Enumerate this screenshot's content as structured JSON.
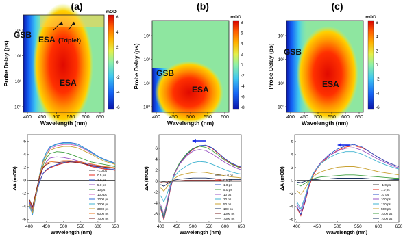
{
  "panel_labels": [
    "(a)",
    "(b)",
    "(c)"
  ],
  "colors": {
    "cmap": [
      "#0a12a8",
      "#1565f5",
      "#3fc7f0",
      "#8ef0a8",
      "#e3ef4a",
      "#ffb200",
      "#ff5a00",
      "#d80000"
    ],
    "arrow": "#1a2ee8"
  },
  "chart_data": [
    {
      "type": "heatmap",
      "panel": "(a)",
      "xlabel": "Wavelength (nm)",
      "ylabel": "Probe Delay (ps)",
      "xticks": [
        "400",
        "450",
        "500",
        "550",
        "600",
        "650"
      ],
      "yticks": [
        "10⁰",
        "10¹",
        "10²",
        "10³"
      ],
      "y_scale": "log",
      "colorbar": {
        "title": "mOD",
        "ticks": [
          "6",
          "4",
          "2",
          "0",
          "-2",
          "-4",
          "-6"
        ],
        "range": [
          -6,
          6
        ]
      },
      "annotations": [
        "GSB",
        "ESA",
        "ESA",
        "(Triplet)"
      ]
    },
    {
      "type": "heatmap",
      "panel": "(b)",
      "xlabel": "Wavelength (nm)",
      "ylabel": "",
      "xticks": [
        "400",
        "450",
        "500",
        "550",
        "600"
      ],
      "yticks": [
        "10⁰",
        "10¹",
        "10²",
        "10³"
      ],
      "y_scale": "log",
      "colorbar": {
        "title": "mOD",
        "ticks": [
          "8",
          "6",
          "4",
          "2",
          "0",
          "-2",
          "-4",
          "-6",
          "-8"
        ],
        "range": [
          -8,
          8
        ]
      },
      "annotations": [
        "GSB",
        "ESA"
      ]
    },
    {
      "type": "heatmap",
      "panel": "(c)",
      "xlabel": "Wavelength (nm)",
      "ylabel": "",
      "xticks": [
        "400",
        "450",
        "500",
        "550",
        "600",
        "650"
      ],
      "yticks": [
        "10⁰",
        "10¹",
        "10²",
        "10³"
      ],
      "y_scale": "log",
      "colorbar": {
        "title": "mOD",
        "ticks": [
          "6",
          "4",
          "2",
          "0",
          "-2",
          "-4",
          "-6"
        ],
        "range": [
          -6,
          6
        ]
      },
      "annotations": [
        "GSB",
        "ESA"
      ]
    },
    {
      "type": "line",
      "panel": "(a)",
      "xlabel": "Wavelength (nm)",
      "ylabel": "ΔA (mOD)",
      "xticks": [
        "400",
        "450",
        "500",
        "550",
        "600",
        "650"
      ],
      "yticks": [
        "-6",
        "-4",
        "-2",
        "0",
        "2",
        "4",
        "6"
      ],
      "xlim": [
        395,
        650
      ],
      "ylim": [
        -6.5,
        7
      ],
      "x": [
        400,
        410,
        420,
        430,
        440,
        450,
        460,
        480,
        500,
        520,
        540,
        560,
        580,
        600,
        620,
        640,
        650
      ],
      "series": [
        {
          "name": "-1.0 ps",
          "color": "#444444",
          "values": [
            0,
            0,
            0,
            0,
            0,
            0,
            0,
            0,
            0,
            0,
            0,
            0,
            0,
            0,
            0,
            0,
            0
          ]
        },
        {
          "name": "0.5 ps",
          "color": "#e8281e",
          "values": [
            -3.1,
            -4.3,
            -2.2,
            -0.2,
            1.0,
            1.5,
            1.9,
            2.3,
            2.6,
            2.8,
            2.8,
            2.5,
            2.1,
            1.9,
            1.7,
            1.6,
            1.5
          ]
        },
        {
          "name": "1.0 ps",
          "color": "#2b52c9",
          "values": [
            -3.3,
            -4.6,
            -2.4,
            -0.3,
            1.0,
            1.6,
            2.0,
            2.4,
            2.7,
            2.9,
            2.9,
            2.6,
            2.2,
            2.0,
            1.8,
            1.7,
            1.6
          ]
        },
        {
          "name": "5.0 ps",
          "color": "#9a56c4",
          "values": [
            -3.5,
            -4.8,
            -2.3,
            0.2,
            1.8,
            2.8,
            3.4,
            3.6,
            3.5,
            3.3,
            3.0,
            2.7,
            2.4,
            2.2,
            2.0,
            1.9,
            1.8
          ]
        },
        {
          "name": "10 ps",
          "color": "#3f9f40",
          "values": [
            -3.7,
            -5.0,
            -2.5,
            0.3,
            2.2,
            3.4,
            4.1,
            4.4,
            4.3,
            4.0,
            3.6,
            3.2,
            2.8,
            2.6,
            2.4,
            2.2,
            2.1
          ]
        },
        {
          "name": "100 ps",
          "color": "#d05fc0",
          "values": [
            -3.8,
            -5.2,
            -2.5,
            0.5,
            2.6,
            3.9,
            4.8,
            5.3,
            5.5,
            5.5,
            5.3,
            4.8,
            4.2,
            3.6,
            3.1,
            2.7,
            2.5
          ]
        },
        {
          "name": "1000 ps",
          "color": "#2f6bd8",
          "values": [
            -3.9,
            -5.3,
            -2.4,
            0.8,
            3.0,
            4.3,
            5.1,
            5.6,
            5.8,
            5.8,
            5.6,
            5.0,
            4.4,
            3.7,
            3.2,
            2.8,
            2.6
          ]
        },
        {
          "name": "2000 ps",
          "color": "#3fb3d0",
          "values": [
            -3.8,
            -5.2,
            -2.3,
            0.8,
            2.9,
            4.2,
            5.0,
            5.5,
            5.7,
            5.7,
            5.4,
            4.9,
            4.3,
            3.6,
            3.1,
            2.7,
            2.5
          ]
        },
        {
          "name": "3000 ps",
          "color": "#c8a030",
          "values": [
            -3.6,
            -5.0,
            -2.2,
            0.7,
            2.7,
            3.9,
            4.6,
            5.0,
            5.2,
            5.2,
            5.0,
            4.5,
            4.0,
            3.4,
            2.9,
            2.6,
            2.4
          ]
        },
        {
          "name": "6000 ps",
          "color": "#ee7a22",
          "values": [
            -3.0,
            -4.2,
            -1.8,
            0.6,
            2.0,
            2.6,
            2.8,
            2.9,
            3.0,
            3.0,
            2.9,
            2.7,
            2.5,
            2.3,
            2.1,
            2.0,
            1.9
          ]
        },
        {
          "name": "7000 ps",
          "color": "#7a2020",
          "values": [
            -2.9,
            -4.1,
            -1.8,
            0.5,
            1.9,
            2.4,
            2.6,
            2.7,
            2.8,
            2.8,
            2.7,
            2.5,
            2.3,
            2.1,
            2.0,
            1.9,
            1.8
          ]
        }
      ]
    },
    {
      "type": "line",
      "panel": "(b)",
      "xlabel": "Wavelength (nm)",
      "ylabel": "ΔA (mOD)",
      "xticks": [
        "400",
        "450",
        "500",
        "550",
        "600",
        "650"
      ],
      "yticks": [
        "-6",
        "-4",
        "-2",
        "0",
        "2",
        "4",
        "6"
      ],
      "xlim": [
        395,
        650
      ],
      "ylim": [
        -7.5,
        8.5
      ],
      "x": [
        400,
        410,
        420,
        430,
        440,
        450,
        460,
        480,
        500,
        520,
        540,
        560,
        580,
        600,
        620,
        640,
        650
      ],
      "series": [
        {
          "name": "-1.0 ps",
          "color": "#444444",
          "values": [
            0,
            0,
            0,
            0,
            0,
            0,
            0,
            0,
            0,
            0,
            0,
            0,
            0,
            0,
            0,
            0,
            0
          ]
        },
        {
          "name": "0.5 ps",
          "color": "#e8281e",
          "values": [
            -5.0,
            -7.0,
            -4.5,
            -1.5,
            0.8,
            2.2,
            3.3,
            4.8,
            5.8,
            6.4,
            6.5,
            6.0,
            5.0,
            4.0,
            3.2,
            2.7,
            2.5
          ]
        },
        {
          "name": "1.0 ps",
          "color": "#2b52c9",
          "values": [
            -4.8,
            -6.8,
            -4.3,
            -1.3,
            0.9,
            2.3,
            3.4,
            4.9,
            5.9,
            6.5,
            6.6,
            6.1,
            5.1,
            4.1,
            3.3,
            2.8,
            2.6
          ]
        },
        {
          "name": "5.0 ps",
          "color": "#3f9f40",
          "values": [
            -4.5,
            -6.5,
            -4.0,
            -1.0,
            1.1,
            2.4,
            3.5,
            5.0,
            6.0,
            6.4,
            6.2,
            5.6,
            4.7,
            3.8,
            3.1,
            2.6,
            2.4
          ]
        },
        {
          "name": "10 ps",
          "color": "#9a56c4",
          "values": [
            -4.2,
            -6.1,
            -3.7,
            -0.9,
            1.0,
            2.2,
            3.2,
            4.6,
            5.5,
            5.8,
            5.6,
            5.0,
            4.2,
            3.4,
            2.8,
            2.3,
            2.1
          ]
        },
        {
          "name": "20 ns",
          "color": "#3fb3d0",
          "values": [
            -2.6,
            -3.8,
            -2.3,
            -0.5,
            0.7,
            1.4,
            2.0,
            2.8,
            3.4,
            3.6,
            3.5,
            3.1,
            2.6,
            2.1,
            1.7,
            1.4,
            1.3
          ]
        },
        {
          "name": "50 ns",
          "color": "#c8a030",
          "values": [
            -1.2,
            -1.8,
            -1.0,
            -0.2,
            0.4,
            0.8,
            1.1,
            1.4,
            1.6,
            1.7,
            1.6,
            1.4,
            1.2,
            1.0,
            0.8,
            0.7,
            0.6
          ]
        },
        {
          "name": "100 ps",
          "color": "#1a3060",
          "values": [
            -0.6,
            -0.9,
            -0.5,
            -0.1,
            0.2,
            0.3,
            0.4,
            0.5,
            0.6,
            0.6,
            0.6,
            0.5,
            0.4,
            0.4,
            0.3,
            0.3,
            0.3
          ]
        },
        {
          "name": "1000 ps",
          "color": "#7a2020",
          "values": [
            -0.2,
            -0.3,
            -0.2,
            0,
            0.1,
            0.1,
            0.1,
            0.2,
            0.2,
            0.2,
            0.2,
            0.2,
            0.2,
            0.1,
            0.1,
            0.1,
            0.1
          ]
        },
        {
          "name": "7000 ps",
          "color": "#555555",
          "values": [
            0,
            -0.1,
            0,
            0,
            0,
            0,
            0,
            0,
            0,
            0,
            0,
            0,
            0,
            0,
            0,
            0,
            0
          ]
        }
      ]
    },
    {
      "type": "line",
      "panel": "(c)",
      "xlabel": "Wavelength (nm)",
      "ylabel": "ΔA (mOD)",
      "xticks": [
        "400",
        "450",
        "500",
        "550",
        "600",
        "650"
      ],
      "yticks": [
        "-6",
        "-4",
        "-2",
        "0",
        "2",
        "4",
        "6"
      ],
      "xlim": [
        395,
        650
      ],
      "ylim": [
        -6.5,
        7
      ],
      "x": [
        400,
        410,
        420,
        430,
        440,
        450,
        460,
        480,
        500,
        520,
        540,
        560,
        580,
        600,
        620,
        640,
        650
      ],
      "series": [
        {
          "name": "-1.0 ps",
          "color": "#444444",
          "values": [
            0,
            0,
            0,
            0,
            0,
            0,
            0,
            0,
            0,
            0,
            0,
            0,
            0,
            0,
            0,
            0,
            0
          ]
        },
        {
          "name": "1.0 ps",
          "color": "#e8281e",
          "values": [
            -4.2,
            -5.5,
            -3.5,
            -1.0,
            0.7,
            1.8,
            2.6,
            3.8,
            4.6,
            5.1,
            5.3,
            5.0,
            4.3,
            3.5,
            2.8,
            2.3,
            2.1
          ]
        },
        {
          "name": "10 ps",
          "color": "#2b52c9",
          "values": [
            -4.0,
            -5.3,
            -3.3,
            -0.8,
            0.9,
            2.0,
            2.8,
            4.0,
            4.8,
            5.3,
            5.5,
            5.1,
            4.3,
            3.5,
            2.8,
            2.3,
            2.1
          ]
        },
        {
          "name": "100 ps",
          "color": "#9a56c4",
          "values": [
            -3.6,
            -4.8,
            -2.9,
            -0.6,
            1.0,
            2.0,
            2.8,
            3.8,
            4.5,
            4.9,
            5.0,
            4.6,
            3.9,
            3.2,
            2.6,
            2.1,
            1.9
          ]
        },
        {
          "name": "120 ps",
          "color": "#3fb3d0",
          "values": [
            -3.3,
            -4.4,
            -2.6,
            -0.5,
            1.0,
            1.9,
            2.6,
            3.5,
            4.1,
            4.4,
            4.4,
            4.0,
            3.4,
            2.8,
            2.3,
            1.9,
            1.7
          ]
        },
        {
          "name": "500 ps",
          "color": "#c8a030",
          "values": [
            -1.6,
            -2.2,
            -1.3,
            -0.2,
            0.5,
            1.0,
            1.3,
            1.7,
            2.0,
            2.1,
            2.1,
            1.9,
            1.6,
            1.3,
            1.1,
            0.9,
            0.8
          ]
        },
        {
          "name": "1000 ps",
          "color": "#3f9f40",
          "values": [
            -0.6,
            -0.9,
            -0.5,
            -0.1,
            0.2,
            0.4,
            0.5,
            0.6,
            0.7,
            0.8,
            0.8,
            0.7,
            0.6,
            0.5,
            0.4,
            0.3,
            0.3
          ]
        },
        {
          "name": "7000 ps",
          "color": "#1a3060",
          "values": [
            -0.3,
            -0.4,
            -0.2,
            0,
            0.1,
            0.1,
            0.2,
            0.2,
            0.3,
            0.3,
            0.3,
            0.3,
            0.2,
            0.2,
            0.2,
            0.1,
            0.1
          ]
        }
      ]
    }
  ]
}
